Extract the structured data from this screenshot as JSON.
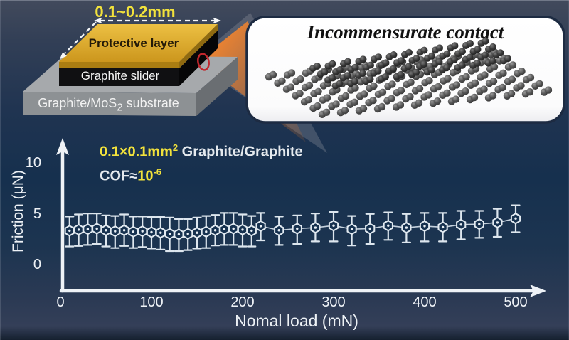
{
  "schematic": {
    "dimension_label": "0.1~0.2mm",
    "protective_layer_label": "Protective layer",
    "slider_label": "Graphite slider",
    "substrate_label": {
      "prefix": "Graphite/MoS",
      "sub": "2",
      "suffix": " substrate"
    },
    "colors": {
      "protective_layer": "#d9a826",
      "slider": "#101012",
      "substrate": "#9ea2a6",
      "beam": "#e8793a",
      "contact_marker": "#c1272d",
      "dimension_text": "#f2e23c"
    }
  },
  "contact_panel": {
    "title": "Incommensurate contact",
    "background": "#ffffff",
    "atom_color": "#4c4c4c"
  },
  "chart_data": {
    "type": "scatter",
    "title": "",
    "xlabel": "Nomal load (mN)",
    "ylabel": "Friction (μN)",
    "xlim": [
      0,
      500
    ],
    "ylim": [
      0,
      12
    ],
    "xticks": [
      0,
      100,
      200,
      300,
      400,
      500
    ],
    "yticks": [
      0,
      5,
      10
    ],
    "grid": false,
    "legend": "none",
    "annotation_line1": {
      "highlight": "0.1×0.1mm",
      "highlight_sup": "2",
      "rest": " Graphite/Graphite"
    },
    "annotation_line2": {
      "prefix": "COF≈",
      "highlight": "10",
      "highlight_sup": "-6"
    },
    "marker": "open-hexagon-with-center-dot-and-error-bars",
    "accent_color": "#f2e23c",
    "series": [
      {
        "name": "Graphite/Graphite friction",
        "points": [
          {
            "x": 10,
            "y": 3.4,
            "eu": 1.4,
            "ed": 1.55
          },
          {
            "x": 20,
            "y": 3.5,
            "eu": 1.5,
            "ed": 1.6
          },
          {
            "x": 30,
            "y": 3.55,
            "eu": 1.55,
            "ed": 1.55
          },
          {
            "x": 40,
            "y": 3.6,
            "eu": 1.5,
            "ed": 1.5
          },
          {
            "x": 50,
            "y": 3.45,
            "eu": 1.45,
            "ed": 1.6
          },
          {
            "x": 60,
            "y": 3.35,
            "eu": 1.5,
            "ed": 1.65
          },
          {
            "x": 70,
            "y": 3.45,
            "eu": 1.55,
            "ed": 1.55
          },
          {
            "x": 80,
            "y": 3.3,
            "eu": 1.5,
            "ed": 1.6
          },
          {
            "x": 90,
            "y": 3.35,
            "eu": 1.45,
            "ed": 1.55
          },
          {
            "x": 100,
            "y": 3.25,
            "eu": 1.5,
            "ed": 1.6
          },
          {
            "x": 110,
            "y": 3.2,
            "eu": 1.55,
            "ed": 1.65
          },
          {
            "x": 120,
            "y": 3.1,
            "eu": 1.6,
            "ed": 1.7
          },
          {
            "x": 130,
            "y": 3.05,
            "eu": 1.5,
            "ed": 1.65
          },
          {
            "x": 140,
            "y": 3.1,
            "eu": 1.45,
            "ed": 1.6
          },
          {
            "x": 150,
            "y": 3.2,
            "eu": 1.5,
            "ed": 1.55
          },
          {
            "x": 160,
            "y": 3.3,
            "eu": 1.55,
            "ed": 1.6
          },
          {
            "x": 170,
            "y": 3.45,
            "eu": 1.5,
            "ed": 1.5
          },
          {
            "x": 180,
            "y": 3.55,
            "eu": 1.6,
            "ed": 1.55
          },
          {
            "x": 190,
            "y": 3.6,
            "eu": 1.55,
            "ed": 1.6
          },
          {
            "x": 200,
            "y": 3.5,
            "eu": 1.5,
            "ed": 1.65
          },
          {
            "x": 210,
            "y": 3.4,
            "eu": 1.45,
            "ed": 1.55
          },
          {
            "x": 220,
            "y": 3.85,
            "eu": 1.3,
            "ed": 1.4
          },
          {
            "x": 240,
            "y": 3.45,
            "eu": 1.35,
            "ed": 1.45
          },
          {
            "x": 260,
            "y": 3.6,
            "eu": 1.3,
            "ed": 1.5
          },
          {
            "x": 280,
            "y": 3.7,
            "eu": 1.4,
            "ed": 1.35
          },
          {
            "x": 300,
            "y": 3.9,
            "eu": 1.35,
            "ed": 1.55
          },
          {
            "x": 320,
            "y": 3.55,
            "eu": 1.3,
            "ed": 1.6
          },
          {
            "x": 340,
            "y": 3.6,
            "eu": 1.45,
            "ed": 1.5
          },
          {
            "x": 360,
            "y": 3.9,
            "eu": 1.3,
            "ed": 1.4
          },
          {
            "x": 380,
            "y": 3.7,
            "eu": 1.35,
            "ed": 1.45
          },
          {
            "x": 400,
            "y": 3.85,
            "eu": 1.3,
            "ed": 1.5
          },
          {
            "x": 420,
            "y": 3.75,
            "eu": 1.4,
            "ed": 1.4
          },
          {
            "x": 440,
            "y": 4.0,
            "eu": 1.35,
            "ed": 1.45
          },
          {
            "x": 460,
            "y": 4.05,
            "eu": 1.3,
            "ed": 1.35
          },
          {
            "x": 480,
            "y": 4.2,
            "eu": 1.35,
            "ed": 1.4
          },
          {
            "x": 500,
            "y": 4.6,
            "eu": 1.3,
            "ed": 1.35
          }
        ]
      }
    ]
  }
}
